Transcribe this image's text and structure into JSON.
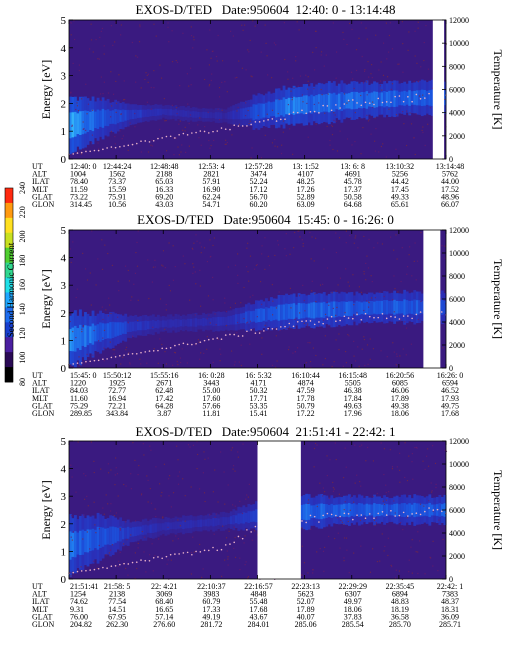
{
  "colors": {
    "plot_background": "#3a1a80",
    "gap": "#ffffff",
    "scale": [
      "#000000",
      "#2a0a55",
      "#4b1fa0",
      "#1840d0",
      "#1e6ef0",
      "#20a8ff",
      "#20e0e8",
      "#30d890",
      "#50d030",
      "#c8e020",
      "#ffe020",
      "#ff9a10",
      "#ff2a10"
    ]
  },
  "color_scale": {
    "title": "Second Harmonic Current",
    "ticks": [
      "80",
      "100",
      "120",
      "140",
      "160",
      "180",
      "200",
      "220",
      "240"
    ]
  },
  "chart_data": [
    {
      "type": "heatmap",
      "title": "EXOS-D/TED   Date:950604  12:40: 0 - 13:14:48",
      "ylabel": "Energy [eV]",
      "y2label": "Temperature [K]",
      "ylim": [
        0,
        5
      ],
      "y2lim": [
        0,
        12000
      ],
      "y_ticks": [
        "0",
        "1",
        "2",
        "3",
        "4",
        "5"
      ],
      "y2_ticks": [
        "0",
        "2000",
        "4000",
        "6000",
        "8000",
        "10000",
        "12000"
      ],
      "ephemeris_labels": [
        "UT",
        "ALT",
        "ILAT",
        "MLT",
        "GLAT",
        "GLON"
      ],
      "columns": [
        [
          "12:40: 0",
          "1004",
          "78.40",
          "11.59",
          "73.22",
          "314.45"
        ],
        [
          "12:44:24",
          "1562",
          "73.37",
          "15.59",
          "75.91",
          "10.56"
        ],
        [
          "12:48:48",
          "2188",
          "65.03",
          "16.33",
          "69.20",
          "43.03"
        ],
        [
          "12:53: 4",
          "2821",
          "57.91",
          "16.90",
          "62.24",
          "54.71"
        ],
        [
          "12:57:28",
          "3474",
          "52.24",
          "17.12",
          "56.70",
          "60.20"
        ],
        [
          "13: 1:52",
          "4107",
          "48.25",
          "17.26",
          "52.89",
          "63.09"
        ],
        [
          "13: 6: 8",
          "4691",
          "45.78",
          "17.37",
          "50.58",
          "64.68"
        ],
        [
          "13:10:32",
          "5256",
          "44.42",
          "17.45",
          "49.33",
          "65.61"
        ],
        [
          "13:14:48",
          "5762",
          "44.00",
          "17.52",
          "48.96",
          "66.07"
        ]
      ],
      "data_gaps": [
        [
          0.965,
          0.995
        ]
      ],
      "band": {
        "center_ev": [
          1.2,
          1.45,
          1.6,
          1.7,
          1.6,
          1.55,
          1.7,
          1.9,
          2.0,
          2.1,
          2.15,
          2.2,
          2.2
        ],
        "halfwidth_ev": [
          1.0,
          0.7,
          0.35,
          0.25,
          0.25,
          0.25,
          0.6,
          0.7,
          0.7,
          0.65,
          0.6,
          0.6,
          0.6
        ],
        "intensity": [
          0.8,
          0.5,
          0.35,
          0.2,
          0.18,
          0.15,
          0.45,
          0.65,
          0.6,
          0.55,
          0.55,
          0.55,
          0.5
        ]
      },
      "temperature_trace": [
        400,
        800,
        1300,
        1800,
        2200,
        2600,
        3100,
        3700,
        4300,
        4800,
        5100,
        5300,
        5300
      ]
    },
    {
      "type": "heatmap",
      "title": "EXOS-D/TED   Date:950604  15:45: 0 - 16:26: 0",
      "ylabel": "Energy [eV]",
      "y2label": "Temperature [K]",
      "ylim": [
        0,
        5
      ],
      "y2lim": [
        0,
        12000
      ],
      "y_ticks": [
        "0",
        "1",
        "2",
        "3",
        "4",
        "5"
      ],
      "y2_ticks": [
        "0",
        "2000",
        "4000",
        "6000",
        "8000",
        "10000",
        "12000"
      ],
      "ephemeris_labels": [
        "UT",
        "ALT",
        "ILAT",
        "MLT",
        "GLAT",
        "GLON"
      ],
      "columns": [
        [
          "15:45: 0",
          "1220",
          "84.03",
          "11.60",
          "75.29",
          "289.85"
        ],
        [
          "15:50:12",
          "1925",
          "72.77",
          "16.94",
          "72.21",
          "343.84"
        ],
        [
          "15:55:16",
          "2671",
          "62.48",
          "17.42",
          "64.28",
          "3.87"
        ],
        [
          "16: 0:28",
          "3443",
          "55.00",
          "17.60",
          "57.66",
          "11.81"
        ],
        [
          "16: 5:32",
          "4171",
          "50.32",
          "17.71",
          "53.35",
          "15.41"
        ],
        [
          "16:10:44",
          "4874",
          "47.59",
          "17.78",
          "50.79",
          "17.22"
        ],
        [
          "16:15:48",
          "5505",
          "46.38",
          "17.84",
          "49.63",
          "17.96"
        ],
        [
          "16:20:56",
          "6085",
          "46.06",
          "17.89",
          "49.38",
          "18.06"
        ],
        [
          "16:26: 0",
          "6594",
          "46.52",
          "17.93",
          "49.75",
          "17.68"
        ]
      ],
      "data_gaps": [
        [
          0.94,
          0.985
        ]
      ],
      "band": {
        "center_ev": [
          1.0,
          1.3,
          1.5,
          1.6,
          1.65,
          1.7,
          1.9,
          2.05,
          2.1,
          2.15,
          2.2,
          2.2,
          2.2
        ],
        "halfwidth_ev": [
          1.0,
          0.7,
          0.4,
          0.3,
          0.3,
          0.35,
          0.5,
          0.6,
          0.6,
          0.55,
          0.55,
          0.55,
          0.55
        ],
        "intensity": [
          0.75,
          0.55,
          0.3,
          0.2,
          0.2,
          0.25,
          0.45,
          0.55,
          0.55,
          0.5,
          0.5,
          0.5,
          0.5
        ]
      },
      "temperature_trace": [
        300,
        700,
        1200,
        1700,
        2200,
        2700,
        3200,
        3700,
        4100,
        4400,
        4500,
        4600,
        4600
      ]
    },
    {
      "type": "heatmap",
      "title": "EXOS-D/TED   Date:950604  21:51:41 - 22:42: 1",
      "ylabel": "Energy [eV]",
      "y2label": "Temperature [K]",
      "ylim": [
        0,
        5
      ],
      "y2lim": [
        0,
        12000
      ],
      "y_ticks": [
        "0",
        "1",
        "2",
        "3",
        "4",
        "5"
      ],
      "y2_ticks": [
        "0",
        "2000",
        "4000",
        "6000",
        "8000",
        "10000",
        "12000"
      ],
      "ephemeris_labels": [
        "UT",
        "ALT",
        "ILAT",
        "MLT",
        "GLAT",
        "GLON"
      ],
      "columns": [
        [
          "21:51:41",
          "1254",
          "74.62",
          "9.31",
          "76.00",
          "204.82"
        ],
        [
          "21:58: 5",
          "2138",
          "77.54",
          "14.51",
          "67.95",
          "262.30"
        ],
        [
          "22: 4:21",
          "3069",
          "68.40",
          "16.65",
          "57.14",
          "276.60"
        ],
        [
          "22:10:37",
          "3983",
          "60.79",
          "17.33",
          "49.19",
          "281.72"
        ],
        [
          "22:16:57",
          "4848",
          "55.48",
          "17.68",
          "43.67",
          "284.01"
        ],
        [
          "22:23:13",
          "5623",
          "52.07",
          "17.89",
          "40.07",
          "285.06"
        ],
        [
          "22:29:29",
          "6307",
          "49.97",
          "18.06",
          "37.83",
          "285.54"
        ],
        [
          "22:35:45",
          "6894",
          "48.83",
          "18.19",
          "36.58",
          "285.70"
        ],
        [
          "22:42: 1",
          "7383",
          "48.37",
          "18.31",
          "36.09",
          "285.71"
        ]
      ],
      "data_gaps": [
        [
          0.5,
          0.615
        ]
      ],
      "band": {
        "center_ev": [
          1.2,
          1.5,
          1.7,
          1.9,
          2.0,
          2.1,
          2.3,
          2.4,
          2.45,
          2.5,
          2.5,
          2.5,
          2.5
        ],
        "halfwidth_ev": [
          1.0,
          0.8,
          0.4,
          0.3,
          0.3,
          0.3,
          0.5,
          0.6,
          0.55,
          0.5,
          0.5,
          0.5,
          0.5
        ],
        "intensity": [
          0.6,
          0.5,
          0.3,
          0.2,
          0.2,
          0.2,
          0.45,
          0.6,
          0.55,
          0.5,
          0.5,
          0.5,
          0.5
        ]
      },
      "temperature_trace": [
        500,
        900,
        1400,
        1900,
        2300,
        2800,
        4600,
        5000,
        5300,
        5500,
        5700,
        5800,
        5800
      ]
    }
  ]
}
